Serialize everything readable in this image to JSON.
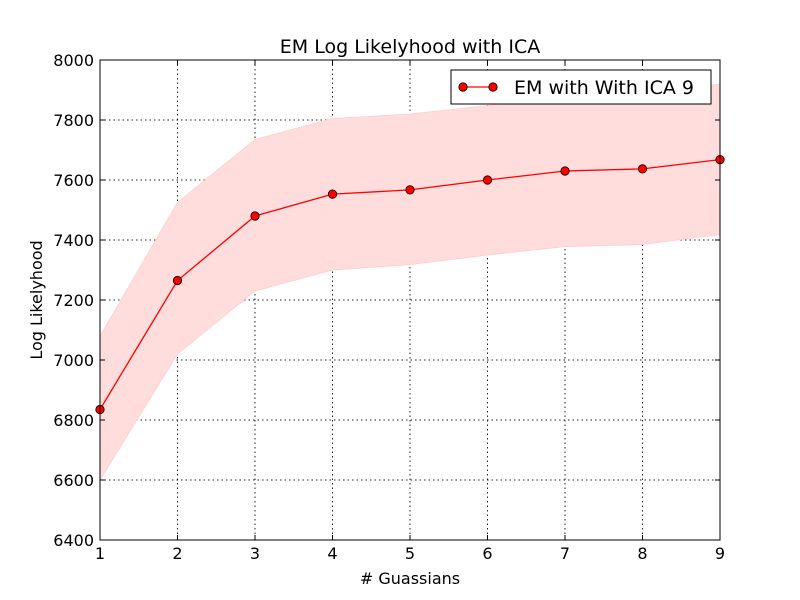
{
  "chart_data": {
    "type": "line",
    "title": "EM Log Likelyhood with ICA",
    "xlabel": "# Guassians",
    "ylabel": "Log Likelyhood",
    "xlim": [
      1,
      9
    ],
    "ylim": [
      6400,
      8000
    ],
    "xticks": [
      "1",
      "2",
      "3",
      "4",
      "5",
      "6",
      "7",
      "8",
      "9"
    ],
    "yticks": [
      "6400",
      "6600",
      "6800",
      "7000",
      "7200",
      "7400",
      "7600",
      "7800",
      "8000"
    ],
    "grid": true,
    "legend_position": "top-right",
    "series": [
      {
        "name": "EM with With ICA 9",
        "color": "#ff0000",
        "marker": "circle",
        "x": [
          1,
          2,
          3,
          4,
          5,
          6,
          7,
          8,
          9
        ],
        "y": [
          6835,
          7265,
          7480,
          7553,
          7567,
          7600,
          7630,
          7637,
          7668
        ],
        "band_upper": [
          7080,
          7525,
          7735,
          7805,
          7820,
          7848,
          7880,
          7888,
          7920
        ],
        "band_lower": [
          6600,
          7020,
          7230,
          7300,
          7318,
          7350,
          7378,
          7385,
          7418
        ],
        "band_color": "#ffdddd"
      }
    ]
  }
}
